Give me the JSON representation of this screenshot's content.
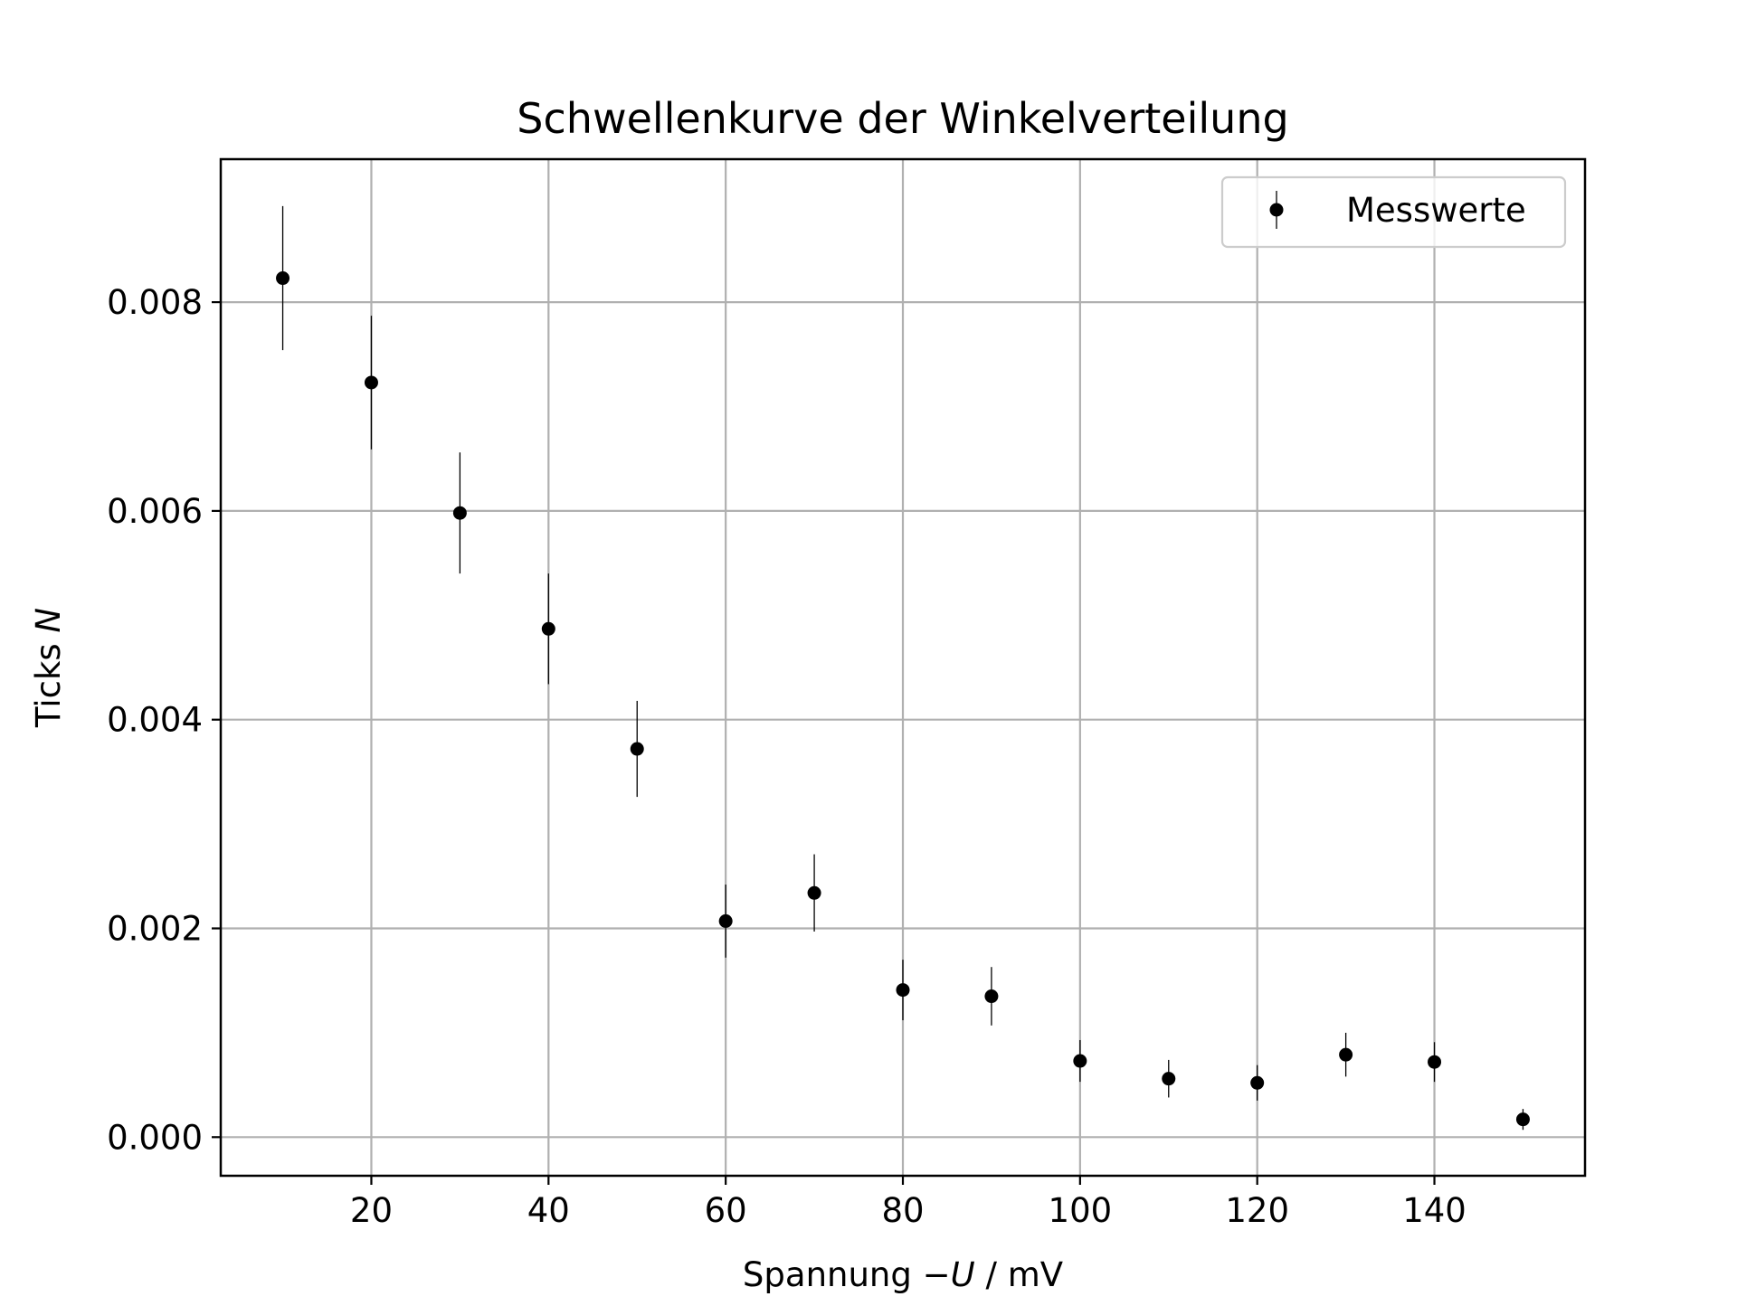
{
  "chart_data": {
    "type": "scatter",
    "title": "Schwellenkurve der Winkelverteilung",
    "xlabel": {
      "prefix": "Spannung −",
      "variable": "U",
      "suffix": " / mV"
    },
    "ylabel": {
      "prefix": "Ticks ",
      "variable": "N"
    },
    "xlim": [
      3,
      157
    ],
    "ylim": [
      -0.00037,
      0.00937
    ],
    "xticks": [
      20,
      40,
      60,
      80,
      100,
      120,
      140
    ],
    "xtick_labels": [
      "20",
      "40",
      "60",
      "80",
      "100",
      "120",
      "140"
    ],
    "yticks": [
      0.0,
      0.002,
      0.004,
      0.006,
      0.008
    ],
    "ytick_labels": [
      "0.000",
      "0.002",
      "0.004",
      "0.006",
      "0.008"
    ],
    "grid": true,
    "legend_position": "top-right",
    "series": [
      {
        "name": "Messwerte",
        "color": "#000000",
        "marker": "circle",
        "x": [
          10,
          20,
          30,
          40,
          50,
          60,
          70,
          80,
          90,
          100,
          110,
          120,
          130,
          140,
          150
        ],
        "y": [
          0.00823,
          0.00723,
          0.00598,
          0.00487,
          0.00372,
          0.00207,
          0.00234,
          0.00141,
          0.00135,
          0.00073,
          0.00056,
          0.00052,
          0.00079,
          0.00072,
          0.00017
        ],
        "yerr": [
          0.00069,
          0.00064,
          0.00058,
          0.00053,
          0.00046,
          0.00035,
          0.00037,
          0.00029,
          0.00028,
          0.0002,
          0.00018,
          0.00017,
          0.00021,
          0.00019,
          0.0001
        ]
      }
    ]
  }
}
